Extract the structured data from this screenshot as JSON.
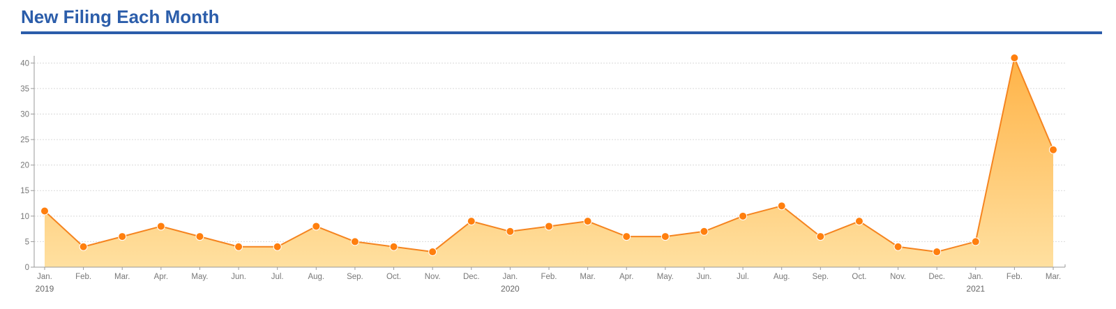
{
  "chart_data": {
    "type": "area",
    "title": "New Filing Each Month",
    "xlabel": "",
    "ylabel": "",
    "categories": [
      "Jan.",
      "Feb.",
      "Mar.",
      "Apr.",
      "May.",
      "Jun.",
      "Jul.",
      "Aug.",
      "Sep.",
      "Oct.",
      "Nov.",
      "Dec.",
      "Jan.",
      "Feb.",
      "Mar.",
      "Apr.",
      "May.",
      "Jun.",
      "Jul.",
      "Aug.",
      "Sep.",
      "Oct.",
      "Nov.",
      "Dec.",
      "Jan.",
      "Feb.",
      "Mar."
    ],
    "years": [
      "2019",
      "",
      "",
      "",
      "",
      "",
      "",
      "",
      "",
      "",
      "",
      "",
      "2020",
      "",
      "",
      "",
      "",
      "",
      "",
      "",
      "",
      "",
      "",
      "",
      "2021",
      "",
      ""
    ],
    "values": [
      11,
      4,
      6,
      8,
      6,
      4,
      4,
      8,
      5,
      4,
      3,
      9,
      7,
      8,
      9,
      6,
      6,
      7,
      10,
      12,
      6,
      9,
      4,
      3,
      5,
      41,
      23
    ],
    "ylim": [
      0,
      41
    ],
    "yticks": [
      0,
      5,
      10,
      15,
      20,
      25,
      30,
      35,
      40
    ],
    "grid": true,
    "legend": "none",
    "colors": {
      "line": "#F5841F",
      "marker": "#FF7F0E",
      "fill_top": "#FFB347",
      "fill_bottom": "#FFE0A0",
      "title": "#2B5DAA",
      "grid": "#D9D9D9",
      "axis": "#999999"
    }
  }
}
